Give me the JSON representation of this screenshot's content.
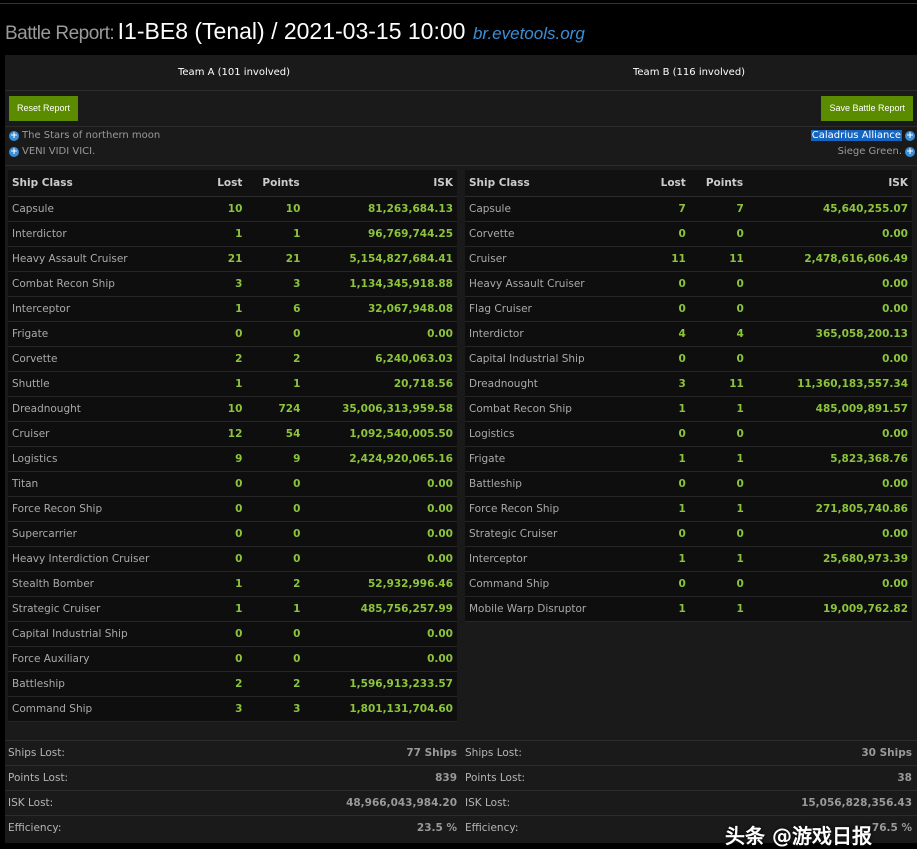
{
  "header": {
    "prefix": "Battle Report:",
    "title": "I1-BE8 (Tenal) / 2021-03-15 10:00",
    "site": "br.evetools.org"
  },
  "teams": [
    {
      "name": "Team A (101 involved)",
      "button": "Reset Report",
      "alliances": [
        "The Stars of northern moon",
        "VENI VIDI VICI."
      ],
      "columns": [
        "Ship Class",
        "Lost",
        "Points",
        "ISK"
      ],
      "rows": [
        [
          "Capsule",
          "10",
          "10",
          "81,263,684.13"
        ],
        [
          "Interdictor",
          "1",
          "1",
          "96,769,744.25"
        ],
        [
          "Heavy Assault Cruiser",
          "21",
          "21",
          "5,154,827,684.41"
        ],
        [
          "Combat Recon Ship",
          "3",
          "3",
          "1,134,345,918.88"
        ],
        [
          "Interceptor",
          "1",
          "6",
          "32,067,948.08"
        ],
        [
          "Frigate",
          "0",
          "0",
          "0.00"
        ],
        [
          "Corvette",
          "2",
          "2",
          "6,240,063.03"
        ],
        [
          "Shuttle",
          "1",
          "1",
          "20,718.56"
        ],
        [
          "Dreadnought",
          "10",
          "724",
          "35,006,313,959.58"
        ],
        [
          "Cruiser",
          "12",
          "54",
          "1,092,540,005.50"
        ],
        [
          "Logistics",
          "9",
          "9",
          "2,424,920,065.16"
        ],
        [
          "Titan",
          "0",
          "0",
          "0.00"
        ],
        [
          "Force Recon Ship",
          "0",
          "0",
          "0.00"
        ],
        [
          "Supercarrier",
          "0",
          "0",
          "0.00"
        ],
        [
          "Heavy Interdiction Cruiser",
          "0",
          "0",
          "0.00"
        ],
        [
          "Stealth Bomber",
          "1",
          "2",
          "52,932,996.46"
        ],
        [
          "Strategic Cruiser",
          "1",
          "1",
          "485,756,257.99"
        ],
        [
          "Capital Industrial Ship",
          "0",
          "0",
          "0.00"
        ],
        [
          "Force Auxiliary",
          "0",
          "0",
          "0.00"
        ],
        [
          "Battleship",
          "2",
          "2",
          "1,596,913,233.57"
        ],
        [
          "Command Ship",
          "3",
          "3",
          "1,801,131,704.60"
        ]
      ],
      "stats": [
        [
          "Ships Lost:",
          "77 Ships"
        ],
        [
          "Points Lost:",
          "839"
        ],
        [
          "ISK Lost:",
          "48,966,043,984.20"
        ],
        [
          "Efficiency:",
          "23.5 %"
        ]
      ]
    },
    {
      "name": "Team B (116 involved)",
      "button": "Save Battle Report",
      "alliances": [
        "Caladrius Alliance",
        "Siege Green."
      ],
      "columns": [
        "Ship Class",
        "Lost",
        "Points",
        "ISK"
      ],
      "rows": [
        [
          "Capsule",
          "7",
          "7",
          "45,640,255.07"
        ],
        [
          "Corvette",
          "0",
          "0",
          "0.00"
        ],
        [
          "Cruiser",
          "11",
          "11",
          "2,478,616,606.49"
        ],
        [
          "Heavy Assault Cruiser",
          "0",
          "0",
          "0.00"
        ],
        [
          "Flag Cruiser",
          "0",
          "0",
          "0.00"
        ],
        [
          "Interdictor",
          "4",
          "4",
          "365,058,200.13"
        ],
        [
          "Capital Industrial Ship",
          "0",
          "0",
          "0.00"
        ],
        [
          "Dreadnought",
          "3",
          "11",
          "11,360,183,557.34"
        ],
        [
          "Combat Recon Ship",
          "1",
          "1",
          "485,009,891.57"
        ],
        [
          "Logistics",
          "0",
          "0",
          "0.00"
        ],
        [
          "Frigate",
          "1",
          "1",
          "5,823,368.76"
        ],
        [
          "Battleship",
          "0",
          "0",
          "0.00"
        ],
        [
          "Force Recon Ship",
          "1",
          "1",
          "271,805,740.86"
        ],
        [
          "Strategic Cruiser",
          "0",
          "0",
          "0.00"
        ],
        [
          "Interceptor",
          "1",
          "1",
          "25,680,973.39"
        ],
        [
          "Command Ship",
          "0",
          "0",
          "0.00"
        ],
        [
          "Mobile Warp Disruptor",
          "1",
          "1",
          "19,009,762.82"
        ]
      ],
      "stats": [
        [
          "Ships Lost:",
          "30 Ships"
        ],
        [
          "Points Lost:",
          "38"
        ],
        [
          "ISK Lost:",
          "15,056,828,356.43"
        ],
        [
          "Efficiency:",
          "76.5 %"
        ]
      ]
    }
  ],
  "watermark": "头条 @游戏日报",
  "colors": {
    "accent": "#5b8c00",
    "number": "#8cc43c",
    "link": "#3a8fd6"
  }
}
